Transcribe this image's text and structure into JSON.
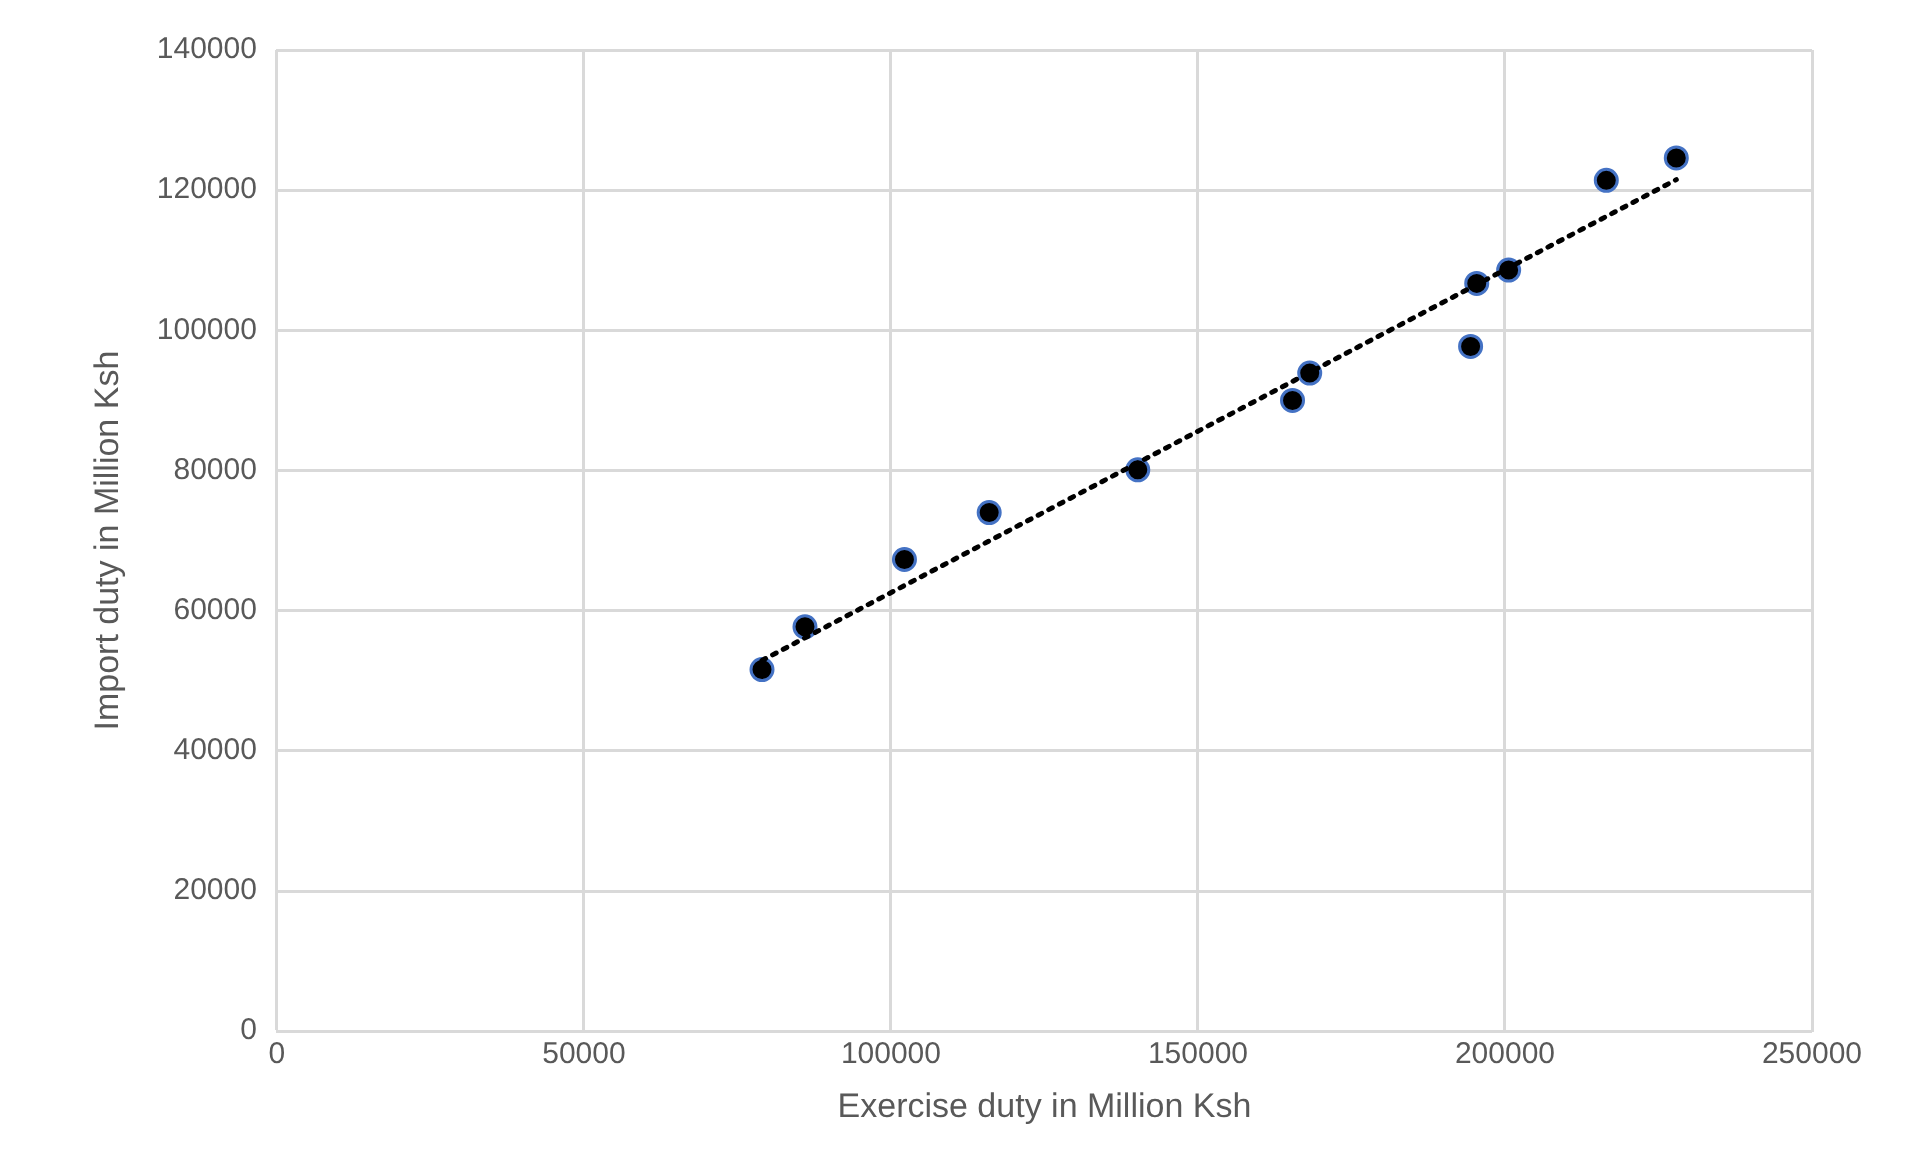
{
  "chart_data": {
    "type": "scatter",
    "xlabel": "Exercise duty in Million Ksh",
    "ylabel": "Import duty in Million Ksh",
    "x": [
      79000,
      86000,
      102200,
      116000,
      140200,
      165400,
      168200,
      194400,
      195400,
      200600,
      216500,
      227900
    ],
    "series": [
      {
        "marker": "circle",
        "color": "#000000",
        "values": [
          51600,
          57700,
          67300,
          74000,
          80100,
          90000,
          93900,
          97700,
          106700,
          108600,
          121400,
          124600
        ]
      },
      {
        "type": "line",
        "color": "#000000",
        "line_style": "dotted",
        "x": [
          79000,
          227900
        ],
        "values": [
          52900,
          121500
        ]
      }
    ],
    "xlim": [
      0,
      250000
    ],
    "xticks": [
      0,
      50000,
      100000,
      150000,
      200000,
      250000
    ],
    "ylim": [
      0,
      140000
    ],
    "yticks": [
      0,
      20000,
      40000,
      60000,
      80000,
      100000,
      120000,
      140000
    ],
    "grid": true,
    "legend": false
  }
}
